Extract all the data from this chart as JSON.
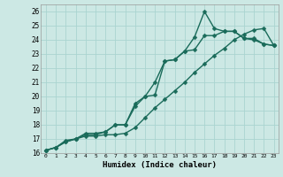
{
  "xlabel": "Humidex (Indice chaleur)",
  "bg_color": "#cce8e4",
  "grid_color": "#aad4d0",
  "line_color": "#1a6b5a",
  "markersize": 2.5,
  "linewidth": 1.0,
  "xlim": [
    -0.5,
    23.5
  ],
  "ylim": [
    16,
    26.5
  ],
  "xticks": [
    0,
    1,
    2,
    3,
    4,
    5,
    6,
    7,
    8,
    9,
    10,
    11,
    12,
    13,
    14,
    15,
    16,
    17,
    18,
    19,
    20,
    21,
    22,
    23
  ],
  "yticks": [
    16,
    17,
    18,
    19,
    20,
    21,
    22,
    23,
    24,
    25,
    26
  ],
  "line1_y": [
    16.2,
    16.4,
    16.8,
    17.0,
    17.4,
    17.4,
    17.5,
    18.0,
    18.0,
    19.5,
    20.0,
    21.0,
    22.5,
    22.6,
    23.2,
    23.3,
    24.3,
    24.3,
    24.6,
    24.6,
    24.1,
    24.1,
    23.7,
    23.6
  ],
  "line2_y": [
    16.2,
    16.4,
    16.9,
    17.0,
    17.3,
    17.3,
    17.5,
    18.0,
    18.0,
    19.3,
    20.0,
    20.1,
    22.5,
    22.6,
    23.2,
    24.2,
    26.0,
    24.8,
    24.6,
    24.6,
    24.1,
    24.0,
    23.7,
    23.6
  ],
  "line3_y": [
    16.2,
    16.4,
    16.8,
    17.0,
    17.2,
    17.2,
    17.3,
    17.3,
    17.4,
    17.8,
    18.5,
    19.2,
    19.8,
    20.4,
    21.0,
    21.7,
    22.3,
    22.9,
    23.4,
    24.0,
    24.4,
    24.7,
    24.8,
    23.6
  ]
}
